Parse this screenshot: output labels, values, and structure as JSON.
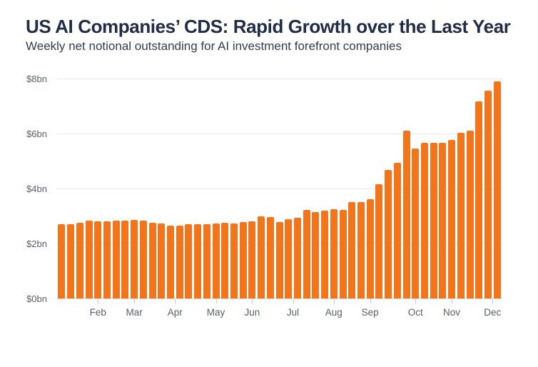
{
  "page": {
    "background": "#FFFFFF"
  },
  "chart_data": {
    "type": "bar",
    "title": "US AI Companies’ CDS: Rapid Growth over the Last Year",
    "subtitle": "Weekly net notional outstanding for AI investment forefront companies",
    "xlabel": "",
    "ylabel": "",
    "unit": "$bn",
    "ylim": [
      0,
      8
    ],
    "grid": "horizontal",
    "legend": "none",
    "yticks": [
      {
        "value": 0,
        "label": "$0bn"
      },
      {
        "value": 2,
        "label": "$2bn"
      },
      {
        "value": 4,
        "label": "$4bn"
      },
      {
        "value": 6,
        "label": "$6bn"
      },
      {
        "value": 8,
        "label": "$8bn"
      }
    ],
    "x_months": [
      {
        "label": "Feb",
        "pos": 5
      },
      {
        "label": "Mar",
        "pos": 9
      },
      {
        "label": "Apr",
        "pos": 13.5
      },
      {
        "label": "May",
        "pos": 18
      },
      {
        "label": "Jun",
        "pos": 22
      },
      {
        "label": "Jul",
        "pos": 26.5
      },
      {
        "label": "Aug",
        "pos": 31
      },
      {
        "label": "Sep",
        "pos": 35
      },
      {
        "label": "Oct",
        "pos": 40
      },
      {
        "label": "Nov",
        "pos": 44
      },
      {
        "label": "Dec",
        "pos": 48.5
      }
    ],
    "series": [
      {
        "name": "Weekly net notional outstanding ($bn)",
        "values": [
          2.7,
          2.69,
          2.75,
          2.82,
          2.81,
          2.81,
          2.83,
          2.83,
          2.86,
          2.83,
          2.76,
          2.73,
          2.64,
          2.65,
          2.69,
          2.7,
          2.7,
          2.74,
          2.75,
          2.73,
          2.78,
          2.8,
          2.98,
          2.96,
          2.79,
          2.88,
          2.94,
          3.21,
          3.15,
          3.19,
          3.24,
          3.22,
          3.5,
          3.51,
          3.62,
          4.15,
          4.68,
          4.93,
          6.1,
          5.45,
          5.66,
          5.67,
          5.65,
          5.77,
          6.02,
          6.1,
          7.17,
          7.56,
          7.9
        ]
      }
    ],
    "colors": {
      "bar": "#F2751C",
      "title": "#212C47",
      "subtitle": "#333C52",
      "axis_text": "#585F6E",
      "gridline": "#E9E9EB",
      "background": "#FFFFFF"
    }
  }
}
